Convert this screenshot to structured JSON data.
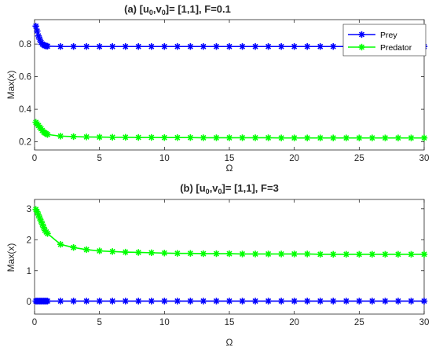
{
  "chart_data": [
    {
      "type": "line",
      "title": {
        "prefix": "(a) [u",
        "sub1": "0",
        "mid": ",v",
        "sub2": "0",
        "suffix": "]= [1,1], F=0.1"
      },
      "xlabel": "Ω",
      "ylabel": "Max(x)",
      "xlim": [
        0,
        30
      ],
      "ylim": [
        0.15,
        0.95
      ],
      "xticks": [
        0,
        5,
        10,
        15,
        20,
        25,
        30
      ],
      "yticks": [
        0.2,
        0.4,
        0.6,
        0.8
      ],
      "grid": false,
      "legend_position": "outside-right",
      "series": [
        {
          "name": "Prey",
          "color": "#0000ff",
          "x": [
            0.1,
            0.2,
            0.3,
            0.4,
            0.5,
            0.6,
            0.7,
            0.8,
            0.9,
            1,
            2,
            3,
            4,
            5,
            6,
            7,
            8,
            9,
            10,
            11,
            12,
            13,
            14,
            15,
            16,
            17,
            18,
            19,
            20,
            21,
            22,
            23,
            24,
            25,
            26,
            27,
            28,
            29,
            30
          ],
          "y": [
            0.91,
            0.88,
            0.85,
            0.83,
            0.81,
            0.8,
            0.795,
            0.79,
            0.788,
            0.787,
            0.785,
            0.785,
            0.785,
            0.785,
            0.785,
            0.785,
            0.785,
            0.785,
            0.785,
            0.785,
            0.785,
            0.785,
            0.785,
            0.785,
            0.785,
            0.785,
            0.785,
            0.785,
            0.785,
            0.785,
            0.785,
            0.785,
            0.785,
            0.785,
            0.785,
            0.785,
            0.785,
            0.785,
            0.785
          ]
        },
        {
          "name": "Predator",
          "color": "#00ff00",
          "x": [
            0.1,
            0.2,
            0.3,
            0.4,
            0.5,
            0.6,
            0.7,
            0.8,
            0.9,
            1,
            2,
            3,
            4,
            5,
            6,
            7,
            8,
            9,
            10,
            11,
            12,
            13,
            14,
            15,
            16,
            17,
            18,
            19,
            20,
            21,
            22,
            23,
            24,
            25,
            26,
            27,
            28,
            29,
            30
          ],
          "y": [
            0.32,
            0.31,
            0.3,
            0.29,
            0.28,
            0.27,
            0.26,
            0.255,
            0.25,
            0.245,
            0.235,
            0.232,
            0.23,
            0.229,
            0.228,
            0.228,
            0.227,
            0.227,
            0.226,
            0.226,
            0.226,
            0.225,
            0.225,
            0.225,
            0.225,
            0.225,
            0.225,
            0.224,
            0.224,
            0.224,
            0.224,
            0.224,
            0.224,
            0.224,
            0.224,
            0.224,
            0.224,
            0.224,
            0.224
          ]
        }
      ]
    },
    {
      "type": "line",
      "title": {
        "prefix": "(b) [u",
        "sub1": "0",
        "mid": ",v",
        "sub2": "0",
        "suffix": "]= [1,1], F=3"
      },
      "xlabel": "Ω",
      "ylabel": "Max(x)",
      "xlim": [
        0,
        30
      ],
      "ylim": [
        -0.4,
        3.3
      ],
      "xticks": [
        0,
        5,
        10,
        15,
        20,
        25,
        30
      ],
      "yticks": [
        0,
        1,
        2,
        3
      ],
      "grid": false,
      "series": [
        {
          "name": "Prey",
          "color": "#0000ff",
          "x": [
            0.1,
            0.2,
            0.3,
            0.4,
            0.5,
            0.6,
            0.7,
            0.8,
            0.9,
            1,
            2,
            3,
            4,
            5,
            6,
            7,
            8,
            9,
            10,
            11,
            12,
            13,
            14,
            15,
            16,
            17,
            18,
            19,
            20,
            21,
            22,
            23,
            24,
            25,
            26,
            27,
            28,
            29,
            30
          ],
          "y": [
            0.02,
            0.02,
            0.02,
            0.02,
            0.02,
            0.02,
            0.02,
            0.02,
            0.02,
            0.02,
            0.02,
            0.02,
            0.02,
            0.02,
            0.02,
            0.02,
            0.02,
            0.02,
            0.02,
            0.02,
            0.02,
            0.02,
            0.02,
            0.02,
            0.02,
            0.02,
            0.02,
            0.02,
            0.02,
            0.02,
            0.02,
            0.02,
            0.02,
            0.02,
            0.02,
            0.02,
            0.02,
            0.02,
            0.02
          ]
        },
        {
          "name": "Predator",
          "color": "#00ff00",
          "x": [
            0.1,
            0.2,
            0.3,
            0.4,
            0.5,
            0.6,
            0.7,
            0.8,
            0.9,
            1,
            2,
            3,
            4,
            5,
            6,
            7,
            8,
            9,
            10,
            11,
            12,
            13,
            14,
            15,
            16,
            17,
            18,
            19,
            20,
            21,
            22,
            23,
            24,
            25,
            26,
            27,
            28,
            29,
            30
          ],
          "y": [
            2.98,
            2.9,
            2.8,
            2.7,
            2.6,
            2.5,
            2.4,
            2.3,
            2.25,
            2.2,
            1.85,
            1.75,
            1.68,
            1.64,
            1.62,
            1.6,
            1.59,
            1.58,
            1.57,
            1.56,
            1.56,
            1.55,
            1.55,
            1.55,
            1.54,
            1.54,
            1.54,
            1.54,
            1.54,
            1.54,
            1.53,
            1.53,
            1.53,
            1.53,
            1.53,
            1.53,
            1.53,
            1.53,
            1.53
          ]
        }
      ]
    }
  ]
}
